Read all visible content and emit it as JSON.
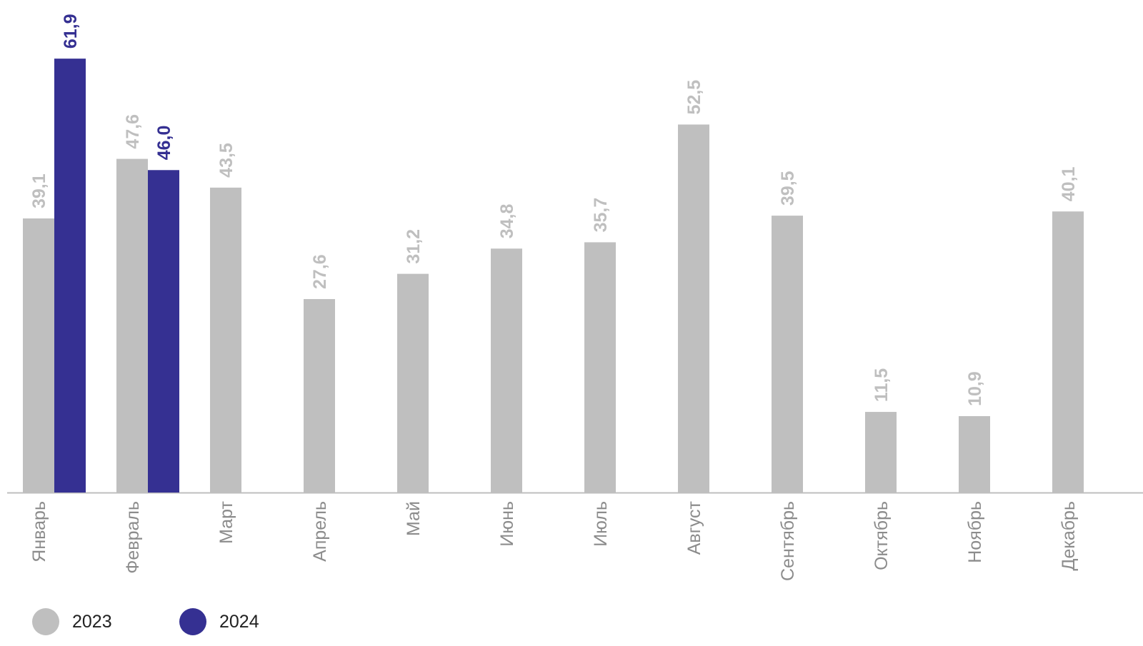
{
  "colors": {
    "series_2023": "#bfbfbf",
    "series_2024": "#353092",
    "axis": "#bfbfbf",
    "label_2023": "#bfbfbf",
    "label_2024": "#353092",
    "category_label": "#8c8c8c"
  },
  "legend": {
    "position": "bottom-left",
    "items": [
      {
        "label": "2023",
        "color": "#bfbfbf"
      },
      {
        "label": "2024",
        "color": "#353092"
      }
    ]
  },
  "chart_data": {
    "type": "bar",
    "categories": [
      "Январь",
      "Февраль",
      "Март",
      "Апрель",
      "Май",
      "Июнь",
      "Июль",
      "Август",
      "Сентябрь",
      "Октябрь",
      "Ноябрь",
      "Декабрь"
    ],
    "series": [
      {
        "name": "2023",
        "values": [
          39.1,
          47.6,
          43.5,
          27.6,
          31.2,
          34.8,
          35.7,
          52.5,
          39.5,
          11.5,
          10.9,
          40.1
        ],
        "labels": [
          "39,1",
          "47,6",
          "43,5",
          "27,6",
          "31,2",
          "34,8",
          "35,7",
          "52,5",
          "39,5",
          "11,5",
          "10,9",
          "40,1"
        ]
      },
      {
        "name": "2024",
        "values": [
          61.9,
          46.0,
          null,
          null,
          null,
          null,
          null,
          null,
          null,
          null,
          null,
          null
        ],
        "labels": [
          "61,9",
          "46,0",
          "",
          "",
          "",
          "",
          "",
          "",
          "",
          "",
          "",
          ""
        ]
      }
    ],
    "title": "",
    "xlabel": "",
    "ylabel": "",
    "ylim": [
      0,
      62
    ],
    "grid": false,
    "data_labels": true
  }
}
